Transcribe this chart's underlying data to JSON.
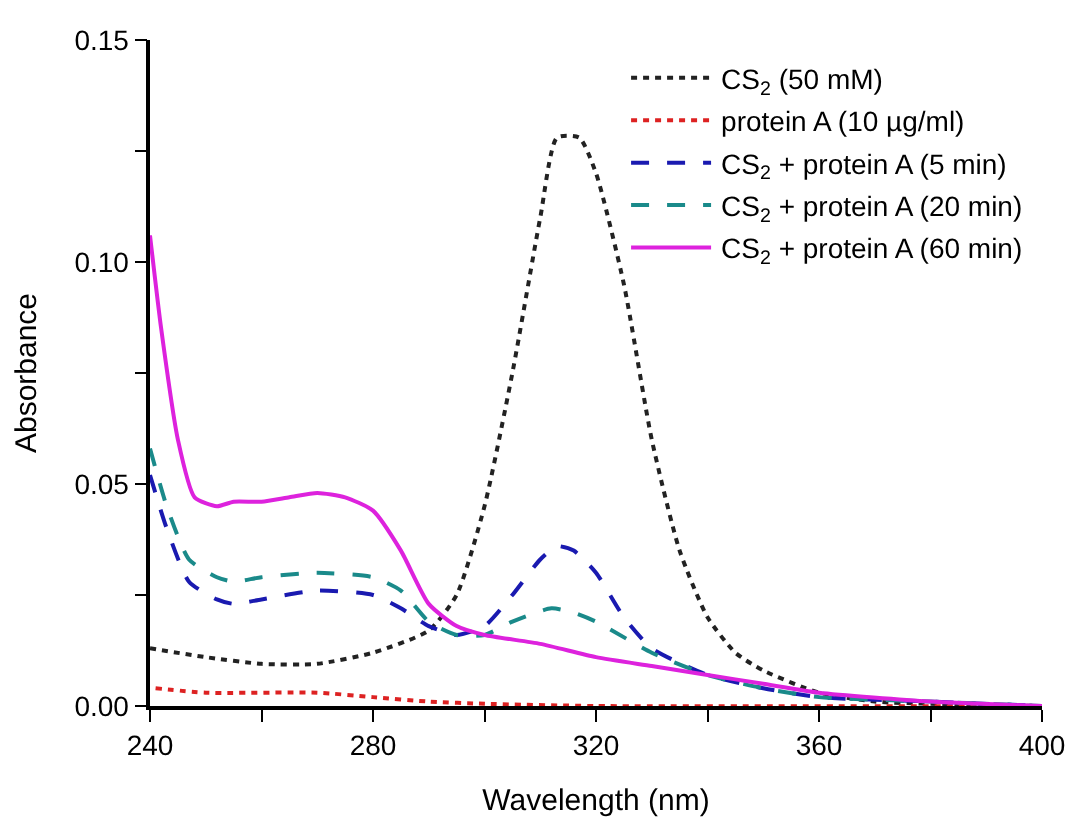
{
  "chart_data": {
    "type": "line",
    "xlabel": "Wavelength (nm)",
    "ylabel": "Absorbance",
    "xlim": [
      240,
      400
    ],
    "xticks": [
      240,
      {
        "value": 260,
        "label": null
      },
      280,
      {
        "value": 300,
        "label": null
      },
      320,
      {
        "value": 340,
        "label": null
      },
      360,
      {
        "value": 380,
        "label": null
      },
      400
    ],
    "ylim": [
      0,
      0.15
    ],
    "yticks": [
      {
        "value": 0,
        "label": "0.00"
      },
      {
        "value": 0.025,
        "label": null
      },
      {
        "value": 0.05,
        "label": "0.05"
      },
      {
        "value": 0.075,
        "label": null
      },
      {
        "value": 0.1,
        "label": "0.10"
      },
      {
        "value": 0.125,
        "label": null
      },
      {
        "value": 0.15,
        "label": "0.15"
      }
    ],
    "legend": "top right",
    "marker": "none",
    "series": [
      {
        "name": "CS$_{2}$ (50 mM)",
        "color": "#222222",
        "line_style": "dotted",
        "x": [
          240,
          250,
          260,
          270,
          280,
          290,
          295,
          300,
          305,
          310,
          313,
          317,
          320,
          325,
          330,
          335,
          340,
          345,
          350,
          360,
          370,
          380,
          400
        ],
        "values": [
          0.013,
          0.011,
          0.0095,
          0.0095,
          0.012,
          0.017,
          0.025,
          0.045,
          0.075,
          0.11,
          0.128,
          0.128,
          0.12,
          0.095,
          0.06,
          0.035,
          0.02,
          0.012,
          0.008,
          0.003,
          0.001,
          0.0005,
          0
        ]
      },
      {
        "name": "protein A (10 µg/ml)",
        "color": "#dd2222",
        "line_style": "dotted",
        "x": [
          241,
          250,
          270,
          280,
          290,
          300,
          320,
          400
        ],
        "values": [
          0.004,
          0.003,
          0.003,
          0.002,
          0.001,
          0.0005,
          0,
          0
        ]
      },
      {
        "name": "CS$_{2}$ + protein A (5 min)",
        "color": "#1a1ab0",
        "line_style": "dashed",
        "x": [
          240,
          243,
          247,
          252,
          255,
          260,
          270,
          280,
          285,
          290,
          295,
          300,
          305,
          310,
          313,
          316,
          320,
          325,
          330,
          340,
          350,
          360,
          380,
          400
        ],
        "values": [
          0.052,
          0.04,
          0.028,
          0.024,
          0.023,
          0.024,
          0.026,
          0.025,
          0.022,
          0.018,
          0.016,
          0.018,
          0.025,
          0.033,
          0.036,
          0.035,
          0.03,
          0.02,
          0.013,
          0.007,
          0.004,
          0.002,
          0.001,
          0
        ]
      },
      {
        "name": "CS$_{2}$ + protein A (20 min)",
        "color": "#1a8a8a",
        "line_style": "dashed",
        "x": [
          240,
          243,
          247,
          252,
          255,
          260,
          270,
          280,
          285,
          290,
          295,
          300,
          305,
          312,
          316,
          320,
          330,
          340,
          350,
          360,
          380,
          400
        ],
        "values": [
          0.058,
          0.045,
          0.033,
          0.029,
          0.028,
          0.029,
          0.03,
          0.029,
          0.026,
          0.019,
          0.016,
          0.016,
          0.019,
          0.022,
          0.021,
          0.019,
          0.012,
          0.007,
          0.004,
          0.002,
          0.001,
          0
        ]
      },
      {
        "name": "CS$_{2}$ + protein A (60 min)",
        "color": "#dd22dd",
        "line_style": "solid",
        "x": [
          240,
          242,
          245,
          248,
          252,
          255,
          260,
          265,
          270,
          275,
          280,
          285,
          290,
          295,
          300,
          310,
          320,
          330,
          340,
          350,
          360,
          380,
          400
        ],
        "values": [
          0.106,
          0.085,
          0.06,
          0.047,
          0.045,
          0.046,
          0.046,
          0.047,
          0.048,
          0.047,
          0.044,
          0.035,
          0.023,
          0.018,
          0.016,
          0.014,
          0.011,
          0.009,
          0.007,
          0.005,
          0.003,
          0.001,
          0
        ]
      }
    ]
  }
}
